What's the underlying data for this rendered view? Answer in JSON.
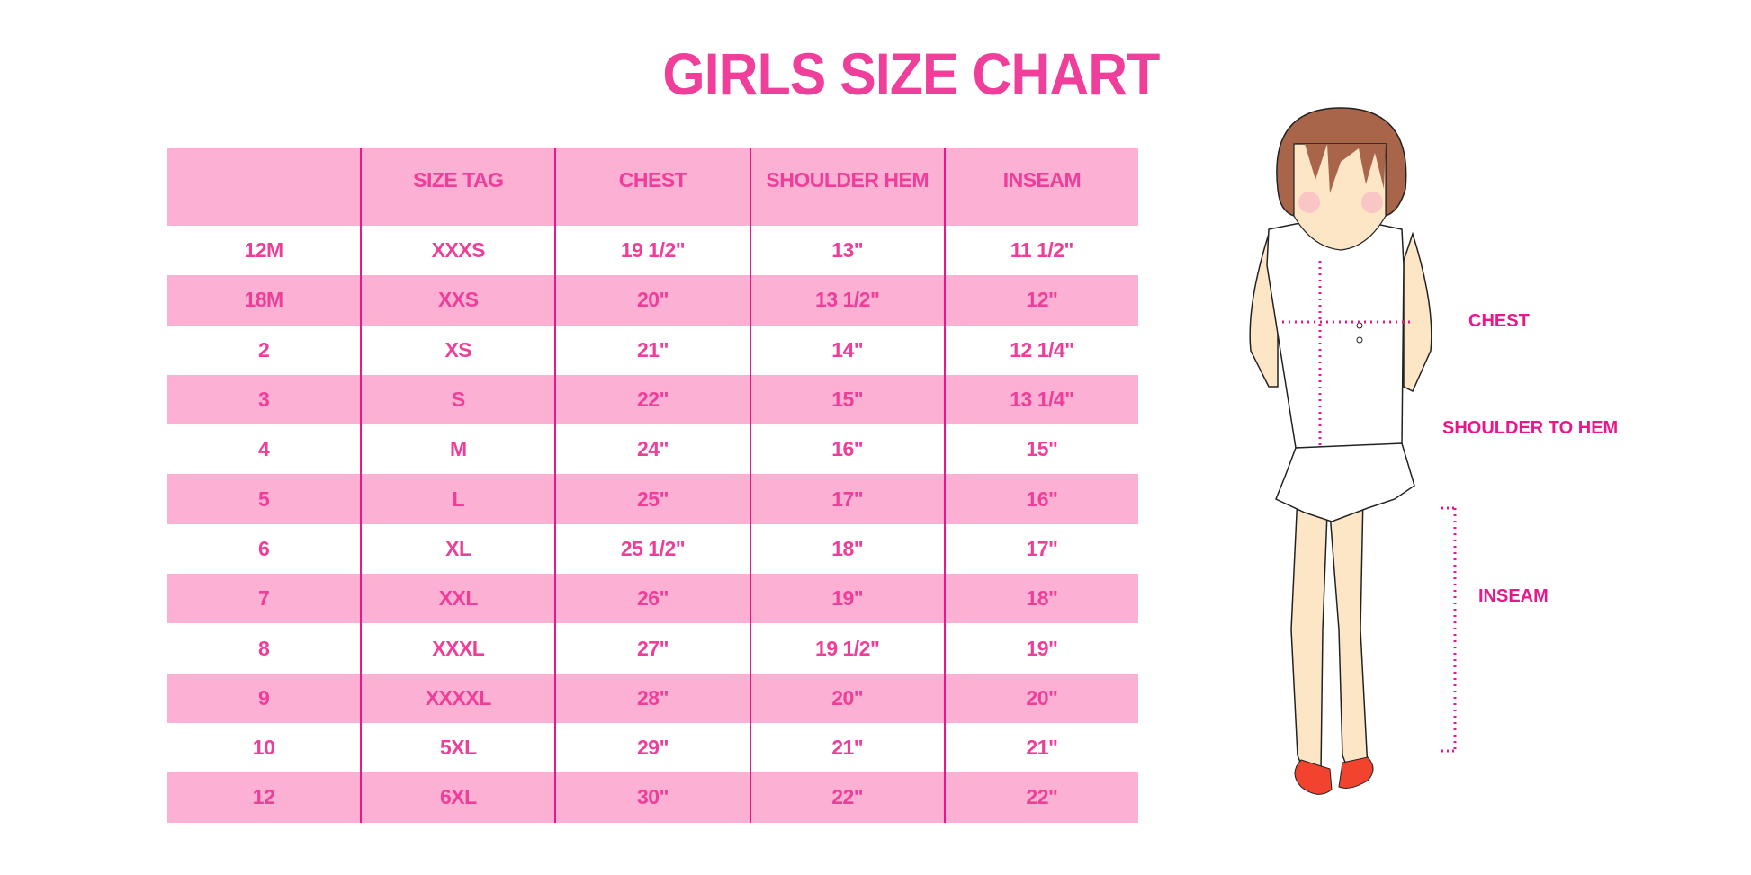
{
  "title": "GIRLS SIZE CHART",
  "table": {
    "headers": [
      "",
      "SIZE TAG",
      "CHEST",
      "SHOULDER HEM",
      "INSEAM"
    ],
    "rows": [
      [
        "12M",
        "XXXS",
        "19 1/2\"",
        "13\"",
        "11 1/2\""
      ],
      [
        "18M",
        "XXS",
        "20\"",
        "13 1/2\"",
        "12\""
      ],
      [
        "2",
        "XS",
        "21\"",
        "14\"",
        "12 1/4\""
      ],
      [
        "3",
        "S",
        "22\"",
        "15\"",
        "13 1/4\""
      ],
      [
        "4",
        "M",
        "24\"",
        "16\"",
        "15\""
      ],
      [
        "5",
        "L",
        "25\"",
        "17\"",
        "16\""
      ],
      [
        "6",
        "XL",
        "25 1/2\"",
        "18\"",
        "17\""
      ],
      [
        "7",
        "XXL",
        "26\"",
        "19\"",
        "18\""
      ],
      [
        "8",
        "XXXL",
        "27\"",
        "19 1/2\"",
        "19\""
      ],
      [
        "9",
        "XXXXL",
        "28\"",
        "20\"",
        "20\""
      ],
      [
        "10",
        "5XL",
        "29\"",
        "21\"",
        "21\""
      ],
      [
        "12",
        "6XL",
        "30\"",
        "22\"",
        "22\""
      ]
    ]
  },
  "figure": {
    "labels": {
      "chest": "CHEST",
      "shoulder_to_hem": "SHOULDER TO HEM",
      "inseam": "INSEAM"
    }
  },
  "colors": {
    "accent": "#ef3e9a",
    "row_pink": "#fcb0d4",
    "divider": "#e8188c"
  }
}
